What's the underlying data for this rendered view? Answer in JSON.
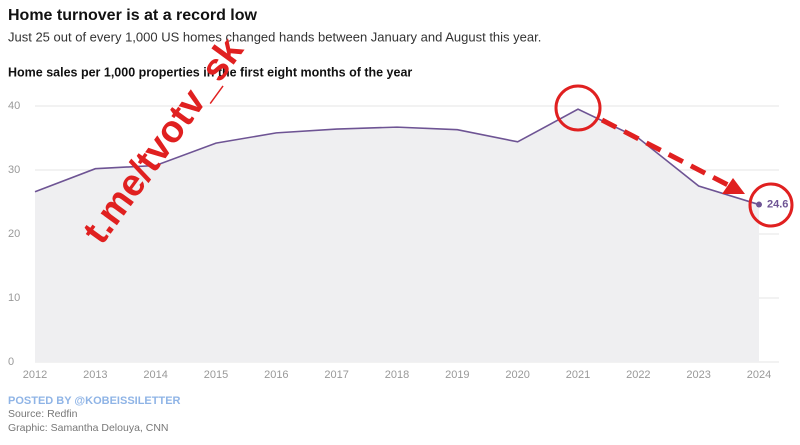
{
  "chart_data": {
    "type": "line",
    "title": "Home turnover is at a record low",
    "subtitle": "Just 25 out of every 1,000 US homes changed hands between January and August this year.",
    "y_label": "Home sales per 1,000 properties in the first eight months of the year",
    "categories": [
      "2012",
      "2013",
      "2014",
      "2015",
      "2016",
      "2017",
      "2018",
      "2019",
      "2020",
      "2021",
      "2022",
      "2023",
      "2024"
    ],
    "values": [
      26.6,
      30.2,
      30.7,
      34.2,
      35.8,
      36.4,
      36.7,
      36.3,
      34.4,
      39.5,
      35.0,
      27.5,
      24.6
    ],
    "color": "#6e5494",
    "area_color": "#efeff1",
    "ylim": [
      0,
      40
    ],
    "yticks": [
      0,
      10,
      20,
      30,
      40
    ],
    "grid": true,
    "posted_by": "POSTED BY @KOBEISSILETTER",
    "source": "Source: Redfin",
    "credit": "Graphic: Samantha Delouya, CNN",
    "watermark": "t.me/tvotv_sk"
  }
}
